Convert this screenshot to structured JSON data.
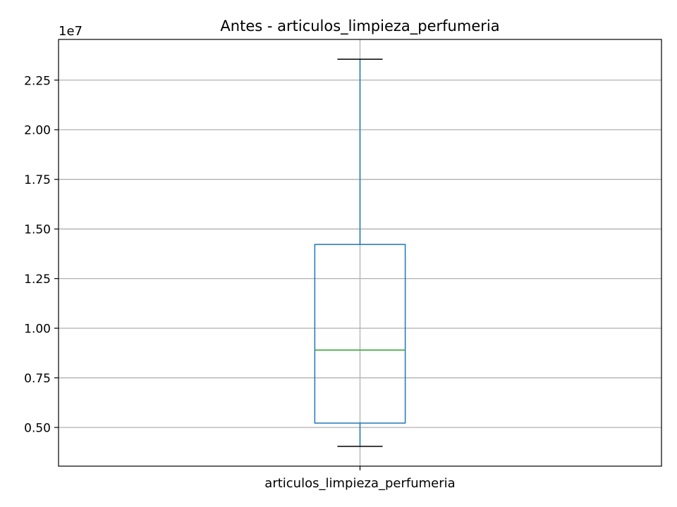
{
  "chart_data": {
    "type": "box",
    "title": "Antes - articulos_limpieza_perfumeria",
    "xlabel": "",
    "ylabel": "",
    "offset_label": "1e7",
    "categories": [
      "articulos_limpieza_perfumeria"
    ],
    "boxes": [
      {
        "category": "articulos_limpieza_perfumeria",
        "whisker_low": 0.405,
        "q1": 0.522,
        "median": 0.89,
        "q3": 1.422,
        "whisker_high": 2.355
      }
    ],
    "ylim": [
      0.305,
      2.455
    ],
    "yticks": [
      0.5,
      0.75,
      1.0,
      1.25,
      1.5,
      1.75,
      2.0,
      2.25
    ],
    "ytick_labels": [
      "0.50",
      "0.75",
      "1.00",
      "1.25",
      "1.50",
      "1.75",
      "2.00",
      "2.25"
    ],
    "grid": true,
    "colors": {
      "box": "#1f77b4",
      "median": "#2ca02c",
      "caps": "#000000",
      "grid": "#b0b0b0"
    }
  }
}
